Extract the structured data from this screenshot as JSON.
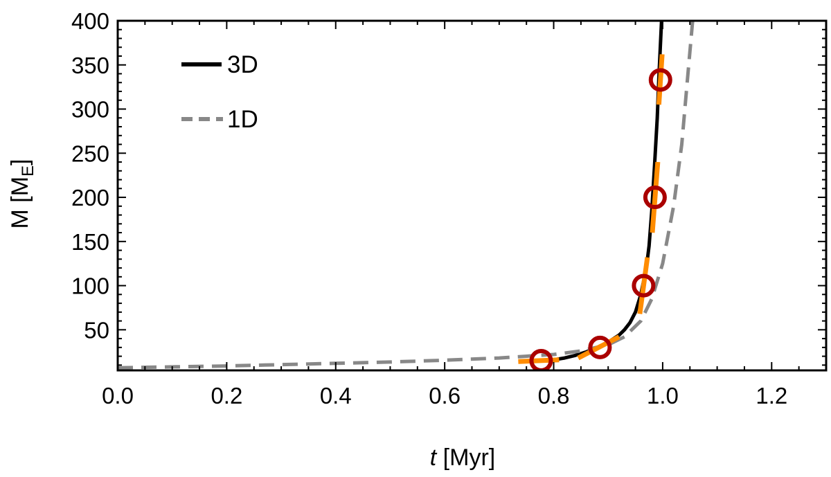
{
  "chart_data": {
    "type": "line",
    "title": "",
    "xlabel": {
      "italic": "t",
      "rest": " [Myr]"
    },
    "ylabel": {
      "main": "M [M",
      "sub": "E",
      "close": "]"
    },
    "xlim": [
      0.0,
      1.3
    ],
    "ylim": [
      4,
      400
    ],
    "x_ticks": [
      0.0,
      0.2,
      0.4,
      0.6,
      0.8,
      1.0,
      1.2
    ],
    "x_tick_labels": [
      "0.0",
      "0.2",
      "0.4",
      "0.6",
      "0.8",
      "1.0",
      "1.2"
    ],
    "y_ticks": [
      50,
      100,
      150,
      200,
      250,
      300,
      350,
      400
    ],
    "y_tick_labels": [
      "50",
      "100",
      "150",
      "200",
      "250",
      "300",
      "350",
      "400"
    ],
    "grid": false,
    "legend": {
      "position": "top-left",
      "entries": [
        {
          "label": "3D",
          "style": "solid",
          "color": "#000000"
        },
        {
          "label": "1D",
          "style": "dashed",
          "color": "#888888"
        }
      ]
    },
    "series": [
      {
        "name": "3D",
        "color": "#000000",
        "style": "solid",
        "x": [
          0.78,
          0.8,
          0.82,
          0.84,
          0.86,
          0.88,
          0.9,
          0.92,
          0.93,
          0.94,
          0.95,
          0.96,
          0.97,
          0.975,
          0.98,
          0.985,
          0.99,
          0.993,
          0.996,
          0.998
        ],
        "y": [
          15,
          16,
          18,
          21,
          25,
          30,
          36,
          44,
          50,
          58,
          70,
          90,
          120,
          145,
          185,
          235,
          290,
          335,
          375,
          400
        ]
      },
      {
        "name": "1D",
        "color": "#888888",
        "style": "dashed",
        "x": [
          0.0,
          0.1,
          0.2,
          0.3,
          0.4,
          0.5,
          0.6,
          0.7,
          0.8,
          0.85,
          0.9,
          0.93,
          0.96,
          0.98,
          1.0,
          1.02,
          1.035,
          1.045,
          1.055
        ],
        "y": [
          7,
          8,
          9,
          10.5,
          12,
          13.5,
          15.5,
          18,
          22,
          26,
          33,
          42,
          60,
          85,
          125,
          190,
          260,
          330,
          400
        ]
      }
    ],
    "markers": {
      "name": "snapshots",
      "style": "open-circle",
      "color": "#aa0000",
      "points": [
        {
          "x": 0.777,
          "y": 15
        },
        {
          "x": 0.885,
          "y": 30
        },
        {
          "x": 0.965,
          "y": 100
        },
        {
          "x": 0.986,
          "y": 200
        },
        {
          "x": 0.996,
          "y": 333
        }
      ]
    },
    "tangents": {
      "name": "local slope segments",
      "color": "#ff8c00",
      "segments": [
        {
          "x1": 0.735,
          "y1": 14,
          "x2": 0.81,
          "y2": 16
        },
        {
          "x1": 0.845,
          "y1": 18,
          "x2": 0.92,
          "y2": 42
        },
        {
          "x1": 0.958,
          "y1": 68,
          "x2": 0.972,
          "y2": 132
        },
        {
          "x1": 0.981,
          "y1": 160,
          "x2": 0.991,
          "y2": 240
        },
        {
          "x1": 0.993,
          "y1": 305,
          "x2": 0.999,
          "y2": 362
        }
      ]
    }
  }
}
